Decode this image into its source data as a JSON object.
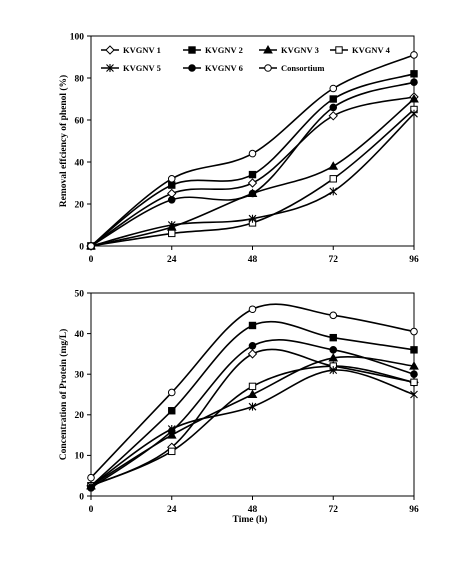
{
  "chart_data": [
    {
      "type": "line",
      "title": "",
      "xlabel": "",
      "ylabel": "Removal effciency of phenol (%)",
      "x": [
        0,
        24,
        48,
        72,
        96
      ],
      "xticks": [
        "0",
        "24",
        "48",
        "72",
        "96"
      ],
      "xlim": [
        0,
        96
      ],
      "ylim": [
        0,
        100
      ],
      "yticks": [
        "0",
        "20",
        "40",
        "60",
        "80",
        "100"
      ],
      "grid": false,
      "legend": "top",
      "series": [
        {
          "name": "KVGNV 1",
          "marker": "diamond",
          "values": [
            0,
            25,
            30,
            62,
            71
          ]
        },
        {
          "name": "KVGNV 2",
          "marker": "square-filled",
          "values": [
            0,
            29,
            34,
            70,
            82
          ]
        },
        {
          "name": "KVGNV 3",
          "marker": "triangle",
          "values": [
            0,
            9,
            25,
            38,
            70
          ]
        },
        {
          "name": "KVGNV 4",
          "marker": "square-open",
          "values": [
            0,
            6,
            11,
            32,
            65
          ]
        },
        {
          "name": "KVGNV 5",
          "marker": "star",
          "values": [
            0,
            10,
            13,
            26,
            63
          ]
        },
        {
          "name": "KVGNV 6",
          "marker": "circle-filled",
          "values": [
            0,
            22,
            25,
            66,
            78
          ]
        },
        {
          "name": "Consortium",
          "marker": "circle-open",
          "values": [
            0,
            32,
            44,
            75,
            91
          ]
        }
      ]
    },
    {
      "type": "line",
      "title": "",
      "xlabel": "Time (h)",
      "ylabel": "Concentration of Protein (mg/L)",
      "x": [
        0,
        24,
        48,
        72,
        96
      ],
      "xticks": [
        "0",
        "24",
        "48",
        "72",
        "96"
      ],
      "xlim": [
        0,
        96
      ],
      "ylim": [
        0,
        50
      ],
      "yticks": [
        "0",
        "10",
        "20",
        "30",
        "40",
        "50"
      ],
      "grid": false,
      "legend": "none",
      "series": [
        {
          "name": "KVGNV 1",
          "marker": "diamond",
          "values": [
            2.5,
            12,
            35,
            32,
            28
          ]
        },
        {
          "name": "KVGNV 2",
          "marker": "square-filled",
          "values": [
            2.5,
            21,
            42,
            39,
            36
          ]
        },
        {
          "name": "KVGNV 3",
          "marker": "triangle",
          "values": [
            2.5,
            15,
            25,
            34,
            32
          ]
        },
        {
          "name": "KVGNV 4",
          "marker": "square-open",
          "values": [
            2.5,
            11,
            27,
            32,
            28
          ]
        },
        {
          "name": "KVGNV 5",
          "marker": "star",
          "values": [
            2.5,
            16.5,
            22,
            31,
            25
          ]
        },
        {
          "name": "KVGNV 6",
          "marker": "circle-filled",
          "values": [
            2,
            16,
            37,
            36,
            30
          ]
        },
        {
          "name": "Consortium",
          "marker": "circle-open",
          "values": [
            4.5,
            25.5,
            46,
            44.5,
            40.5
          ]
        }
      ]
    }
  ]
}
